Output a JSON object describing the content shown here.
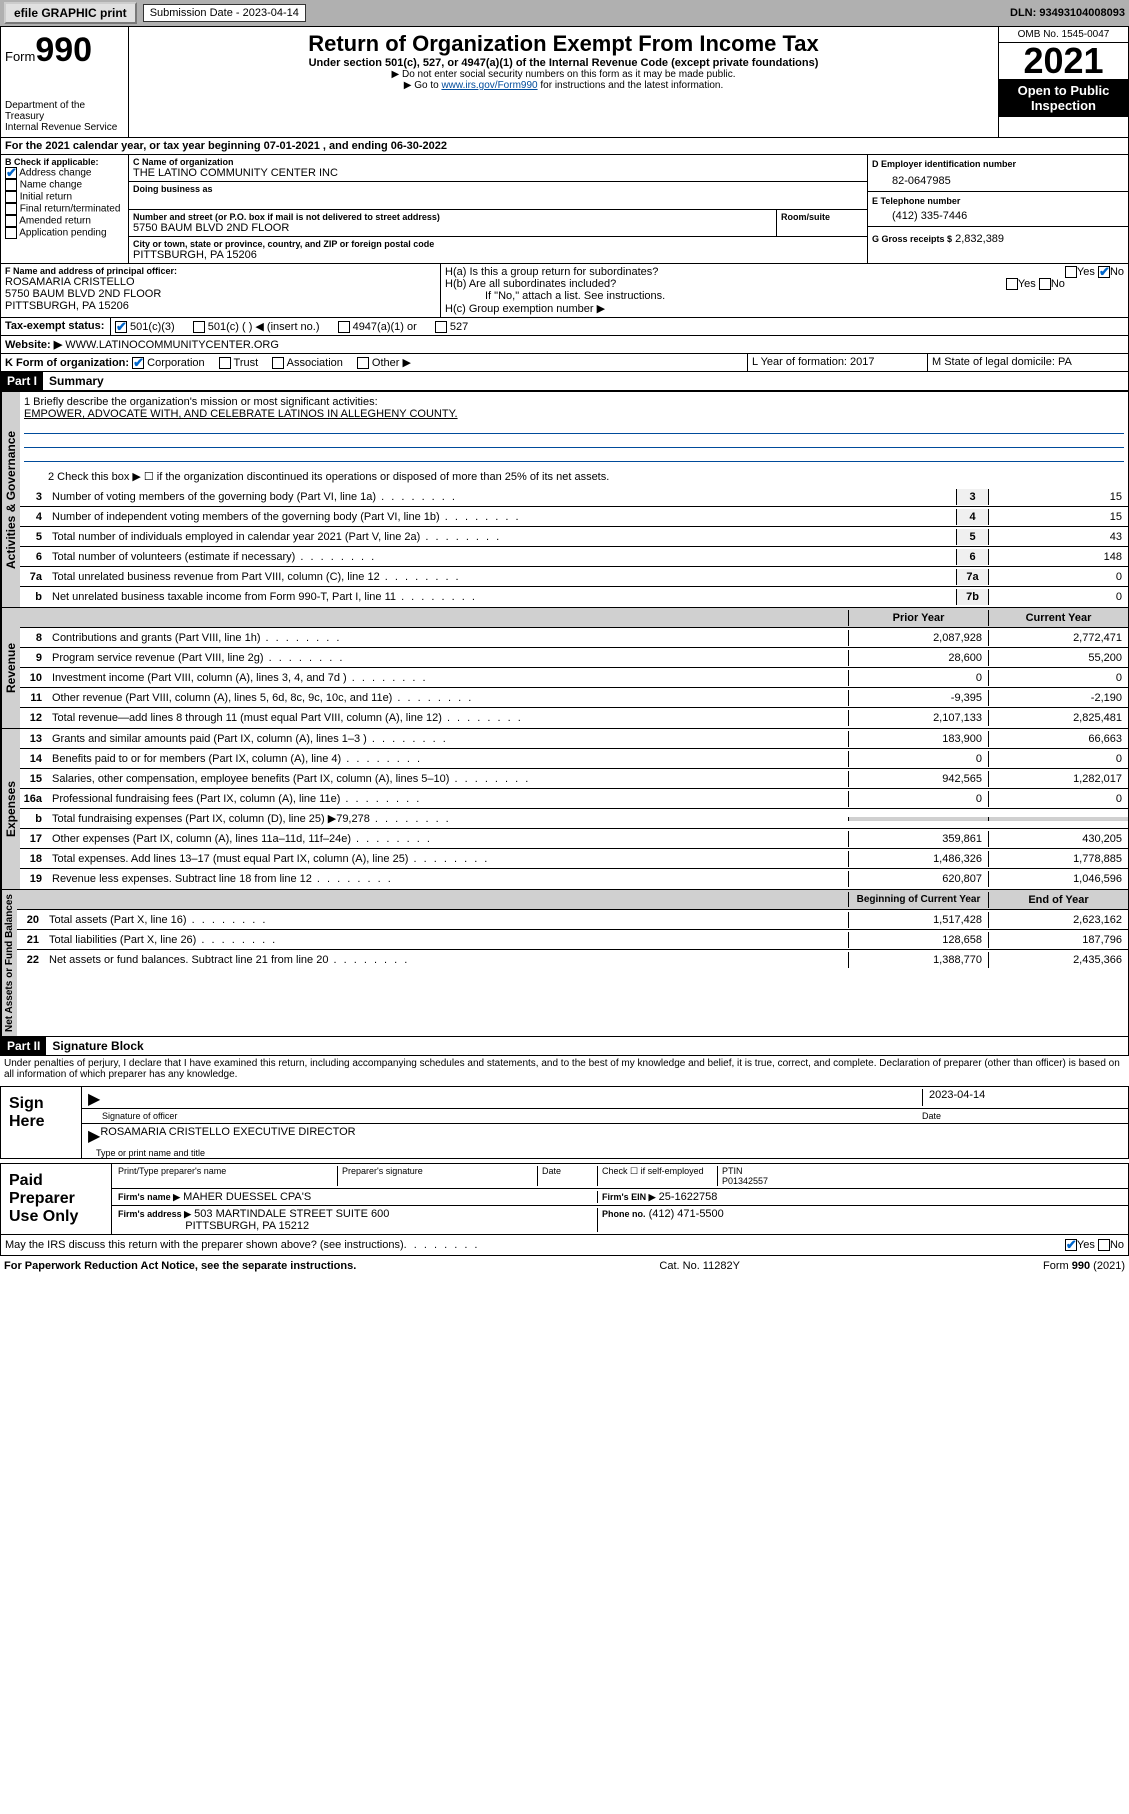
{
  "topbar": {
    "efile": "efile GRAPHIC print",
    "submission_label": "Submission Date - 2023-04-14",
    "dln": "DLN: 93493104008093"
  },
  "header": {
    "form_label": "Form",
    "form_num": "990",
    "dept": "Department of the Treasury",
    "irs": "Internal Revenue Service",
    "title": "Return of Organization Exempt From Income Tax",
    "sub1": "Under section 501(c), 527, or 4947(a)(1) of the Internal Revenue Code (except private foundations)",
    "sub2": "▶ Do not enter social security numbers on this form as it may be made public.",
    "sub3_pre": "▶ Go to ",
    "sub3_link": "www.irs.gov/Form990",
    "sub3_post": " for instructions and the latest information.",
    "omb": "OMB No. 1545-0047",
    "year": "2021",
    "otp": "Open to Public Inspection"
  },
  "period": {
    "text": "For the 2021 calendar year, or tax year beginning 07-01-2021   , and ending 06-30-2022"
  },
  "boxB": {
    "label": "B Check if applicable:",
    "items": [
      "Address change",
      "Name change",
      "Initial return",
      "Final return/terminated",
      "Amended return",
      "Application pending"
    ],
    "checked": [
      true,
      false,
      false,
      false,
      false,
      false
    ]
  },
  "boxC": {
    "name_lab": "C Name of organization",
    "name": "THE LATINO COMMUNITY CENTER INC",
    "dba_lab": "Doing business as",
    "addr_lab": "Number and street (or P.O. box if mail is not delivered to street address)",
    "room_lab": "Room/suite",
    "addr": "5750 BAUM BLVD 2ND FLOOR",
    "city_lab": "City or town, state or province, country, and ZIP or foreign postal code",
    "city": "PITTSBURGH, PA  15206"
  },
  "boxD": {
    "lab": "D Employer identification number",
    "val": "82-0647985"
  },
  "boxE": {
    "lab": "E Telephone number",
    "val": "(412) 335-7446"
  },
  "boxG": {
    "lab": "G Gross receipts $",
    "val": "2,832,389"
  },
  "boxF": {
    "lab": "F  Name and address of principal officer:",
    "name": "ROSAMARIA CRISTELLO",
    "addr1": "5750 BAUM BLVD 2ND FLOOR",
    "addr2": "PITTSBURGH, PA  15206"
  },
  "boxH": {
    "ha": "H(a)  Is this a group return for subordinates?",
    "hb": "H(b)  Are all subordinates included?",
    "hb_note": "If \"No,\" attach a list. See instructions.",
    "hc": "H(c)  Group exemption number ▶",
    "yes": "Yes",
    "no": "No"
  },
  "boxI": {
    "lab": "Tax-exempt status:",
    "opts": [
      "501(c)(3)",
      "501(c) (  ) ◀ (insert no.)",
      "4947(a)(1) or",
      "527"
    ]
  },
  "boxJ": {
    "lab": "Website: ▶",
    "val": "WWW.LATINOCOMMUNITYCENTER.ORG"
  },
  "boxK": {
    "lab": "K Form of organization:",
    "opts": [
      "Corporation",
      "Trust",
      "Association",
      "Other ▶"
    ]
  },
  "boxL": {
    "lab": "L Year of formation: 2017"
  },
  "boxM": {
    "lab": "M State of legal domicile: PA"
  },
  "part1": {
    "hdr": "Part I",
    "title": "Summary"
  },
  "summary": {
    "l1_lab": "1  Briefly describe the organization's mission or most significant activities:",
    "l1_val": "EMPOWER, ADVOCATE WITH, AND CELEBRATE LATINOS IN ALLEGHENY COUNTY.",
    "l2": "2   Check this box ▶ ☐  if the organization discontinued its operations or disposed of more than 25% of its net assets.",
    "gov": [
      {
        "n": "3",
        "t": "Number of voting members of the governing body (Part VI, line 1a)",
        "b": "3",
        "v": "15"
      },
      {
        "n": "4",
        "t": "Number of independent voting members of the governing body (Part VI, line 1b)",
        "b": "4",
        "v": "15"
      },
      {
        "n": "5",
        "t": "Total number of individuals employed in calendar year 2021 (Part V, line 2a)",
        "b": "5",
        "v": "43"
      },
      {
        "n": "6",
        "t": "Total number of volunteers (estimate if necessary)",
        "b": "6",
        "v": "148"
      },
      {
        "n": "7a",
        "t": "Total unrelated business revenue from Part VIII, column (C), line 12",
        "b": "7a",
        "v": "0"
      },
      {
        "n": "b",
        "t": "Net unrelated business taxable income from Form 990-T, Part I, line 11",
        "b": "7b",
        "v": "0"
      }
    ],
    "col_prior": "Prior Year",
    "col_curr": "Current Year",
    "rev": [
      {
        "n": "8",
        "t": "Contributions and grants (Part VIII, line 1h)",
        "p": "2,087,928",
        "c": "2,772,471"
      },
      {
        "n": "9",
        "t": "Program service revenue (Part VIII, line 2g)",
        "p": "28,600",
        "c": "55,200"
      },
      {
        "n": "10",
        "t": "Investment income (Part VIII, column (A), lines 3, 4, and 7d )",
        "p": "0",
        "c": "0"
      },
      {
        "n": "11",
        "t": "Other revenue (Part VIII, column (A), lines 5, 6d, 8c, 9c, 10c, and 11e)",
        "p": "-9,395",
        "c": "-2,190"
      },
      {
        "n": "12",
        "t": "Total revenue—add lines 8 through 11 (must equal Part VIII, column (A), line 12)",
        "p": "2,107,133",
        "c": "2,825,481"
      }
    ],
    "exp": [
      {
        "n": "13",
        "t": "Grants and similar amounts paid (Part IX, column (A), lines 1–3 )",
        "p": "183,900",
        "c": "66,663"
      },
      {
        "n": "14",
        "t": "Benefits paid to or for members (Part IX, column (A), line 4)",
        "p": "0",
        "c": "0"
      },
      {
        "n": "15",
        "t": "Salaries, other compensation, employee benefits (Part IX, column (A), lines 5–10)",
        "p": "942,565",
        "c": "1,282,017"
      },
      {
        "n": "16a",
        "t": "Professional fundraising fees (Part IX, column (A), line 11e)",
        "p": "0",
        "c": "0"
      },
      {
        "n": "b",
        "t": "Total fundraising expenses (Part IX, column (D), line 25) ▶79,278",
        "p": "",
        "c": "",
        "shade": true
      },
      {
        "n": "17",
        "t": "Other expenses (Part IX, column (A), lines 11a–11d, 11f–24e)",
        "p": "359,861",
        "c": "430,205"
      },
      {
        "n": "18",
        "t": "Total expenses. Add lines 13–17 (must equal Part IX, column (A), line 25)",
        "p": "1,486,326",
        "c": "1,778,885"
      },
      {
        "n": "19",
        "t": "Revenue less expenses. Subtract line 18 from line 12",
        "p": "620,807",
        "c": "1,046,596"
      }
    ],
    "col_beg": "Beginning of Current Year",
    "col_end": "End of Year",
    "net": [
      {
        "n": "20",
        "t": "Total assets (Part X, line 16)",
        "p": "1,517,428",
        "c": "2,623,162"
      },
      {
        "n": "21",
        "t": "Total liabilities (Part X, line 26)",
        "p": "128,658",
        "c": "187,796"
      },
      {
        "n": "22",
        "t": "Net assets or fund balances. Subtract line 21 from line 20",
        "p": "1,388,770",
        "c": "2,435,366"
      }
    ],
    "tabs": {
      "gov": "Activities & Governance",
      "rev": "Revenue",
      "exp": "Expenses",
      "net": "Net Assets or Fund Balances"
    }
  },
  "part2": {
    "hdr": "Part II",
    "title": "Signature Block"
  },
  "sig": {
    "decl": "Under penalties of perjury, I declare that I have examined this return, including accompanying schedules and statements, and to the best of my knowledge and belief, it is true, correct, and complete. Declaration of preparer (other than officer) is based on all information of which preparer has any knowledge.",
    "sign_here": "Sign Here",
    "sig_officer": "Signature of officer",
    "date": "Date",
    "date_val": "2023-04-14",
    "name_title": "ROSAMARIA CRISTELLO  EXECUTIVE DIRECTOR",
    "name_lab": "Type or print name and title",
    "paid": "Paid Preparer Use Only",
    "prep_name_lab": "Print/Type preparer's name",
    "prep_sig_lab": "Preparer's signature",
    "check_lab": "Check ☐ if self-employed",
    "ptin_lab": "PTIN",
    "ptin": "P01342557",
    "firm_name_lab": "Firm's name    ▶",
    "firm_name": "MAHER DUESSEL CPA'S",
    "firm_ein_lab": "Firm's EIN ▶",
    "firm_ein": "25-1622758",
    "firm_addr_lab": "Firm's address ▶",
    "firm_addr1": "503 MARTINDALE STREET SUITE 600",
    "firm_addr2": "PITTSBURGH, PA  15212",
    "phone_lab": "Phone no.",
    "phone": "(412) 471-5500",
    "discuss": "May the IRS discuss this return with the preparer shown above? (see instructions)"
  },
  "footer": {
    "pra": "For Paperwork Reduction Act Notice, see the separate instructions.",
    "cat": "Cat. No. 11282Y",
    "form": "Form 990 (2021)"
  }
}
